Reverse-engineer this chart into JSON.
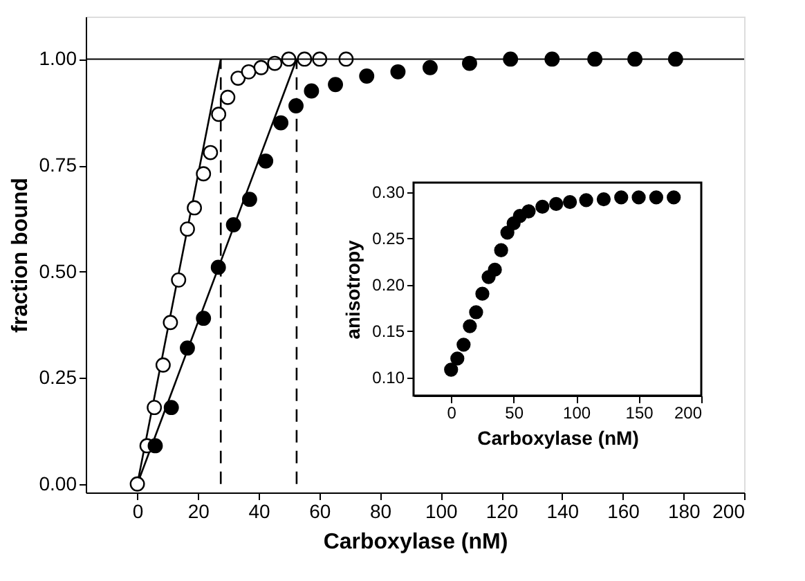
{
  "chart_data": [
    {
      "type": "scatter",
      "xlabel": "Carboxylase (nM)",
      "ylabel": "fraction bound",
      "xlim": [
        -17,
        200
      ],
      "xticks": [
        0,
        20,
        40,
        60,
        80,
        100,
        120,
        140,
        160,
        180,
        200
      ],
      "ylim": [
        -0.02,
        1.1
      ],
      "yticks": [
        {
          "value": 0,
          "label": "0.00"
        },
        {
          "value": 0.25,
          "label": "0.25"
        },
        {
          "value": 0.5,
          "label": "0.50"
        },
        {
          "value": 0.75,
          "label": "0.75"
        },
        {
          "value": 1,
          "label": "1.00"
        }
      ],
      "grid": false,
      "series": [
        {
          "type": "scatter",
          "marker": "circle",
          "color": "#ffffff",
          "x": [
            0,
            3.2,
            5.6,
            8.5,
            10.9,
            13.6,
            16.5,
            18.8,
            21.8,
            24.1,
            26.8,
            29.8,
            33.2,
            36.7,
            40.8,
            45.3,
            49.9,
            55.1,
            60.1,
            68.8
          ],
          "values": [
            0,
            0.09,
            0.18,
            0.28,
            0.38,
            0.48,
            0.6,
            0.65,
            0.73,
            0.78,
            0.87,
            0.91,
            0.955,
            0.97,
            0.98,
            0.99,
            1.0,
            1.0,
            1.0,
            1.0
          ]
        },
        {
          "type": "scatter",
          "marker": "circle",
          "color": "#000000",
          "x": [
            5.9,
            11.2,
            16.5,
            21.8,
            26.7,
            31.7,
            37.0,
            42.3,
            47.3,
            52.3,
            57.4,
            65.3,
            75.6,
            85.9,
            96.5,
            109.5,
            123,
            136.7,
            150.8,
            164,
            177.4
          ],
          "values": [
            0.09,
            0.18,
            0.32,
            0.39,
            0.51,
            0.61,
            0.67,
            0.76,
            0.85,
            0.89,
            0.925,
            0.94,
            0.96,
            0.97,
            0.98,
            0.99,
            1.0,
            1.0,
            1.0,
            1.0,
            1.0
          ]
        },
        {
          "type": "line",
          "line_style": "solid",
          "color": "#000000",
          "x": [
            0,
            27.5
          ],
          "values": [
            0,
            1
          ]
        },
        {
          "type": "line",
          "line_style": "solid",
          "color": "#000000",
          "x": [
            0,
            52.5
          ],
          "values": [
            0,
            1
          ]
        },
        {
          "type": "line",
          "line_style": "dashed",
          "color": "#000000",
          "x": [
            27.5,
            27.5
          ],
          "values": [
            0,
            1
          ]
        },
        {
          "type": "line",
          "line_style": "dashed",
          "color": "#000000",
          "x": [
            52.5,
            52.5
          ],
          "values": [
            0,
            1
          ]
        }
      ],
      "ref_lines": [
        {
          "axis": "y",
          "value": 1,
          "color": "#000000",
          "line_style": "solid"
        }
      ]
    },
    {
      "type": "scatter",
      "xlabel": "Carboxylase (nM)",
      "ylabel": "anisotropy",
      "xlim": [
        -30,
        200
      ],
      "xticks": [
        0,
        50,
        100,
        150,
        200
      ],
      "ylim": [
        0.08,
        0.31
      ],
      "yticks": [
        {
          "value": 0.1,
          "label": "0.10"
        },
        {
          "value": 0.15,
          "label": "0.15"
        },
        {
          "value": 0.2,
          "label": "0.20"
        },
        {
          "value": 0.25,
          "label": "0.25"
        },
        {
          "value": 0.3,
          "label": "0.30"
        }
      ],
      "grid": false,
      "series": [
        {
          "type": "scatter",
          "marker": "circle",
          "color": "#000000",
          "x": [
            0,
            5,
            10,
            15,
            20,
            25,
            30,
            35,
            40,
            45,
            50,
            55,
            62,
            73,
            84,
            95,
            108,
            122,
            136,
            150,
            164,
            178
          ],
          "values": [
            0.108,
            0.12,
            0.135,
            0.155,
            0.17,
            0.19,
            0.208,
            0.216,
            0.237,
            0.256,
            0.266,
            0.274,
            0.279,
            0.284,
            0.287,
            0.289,
            0.291,
            0.292,
            0.294,
            0.294,
            0.294,
            0.294
          ]
        }
      ]
    }
  ]
}
